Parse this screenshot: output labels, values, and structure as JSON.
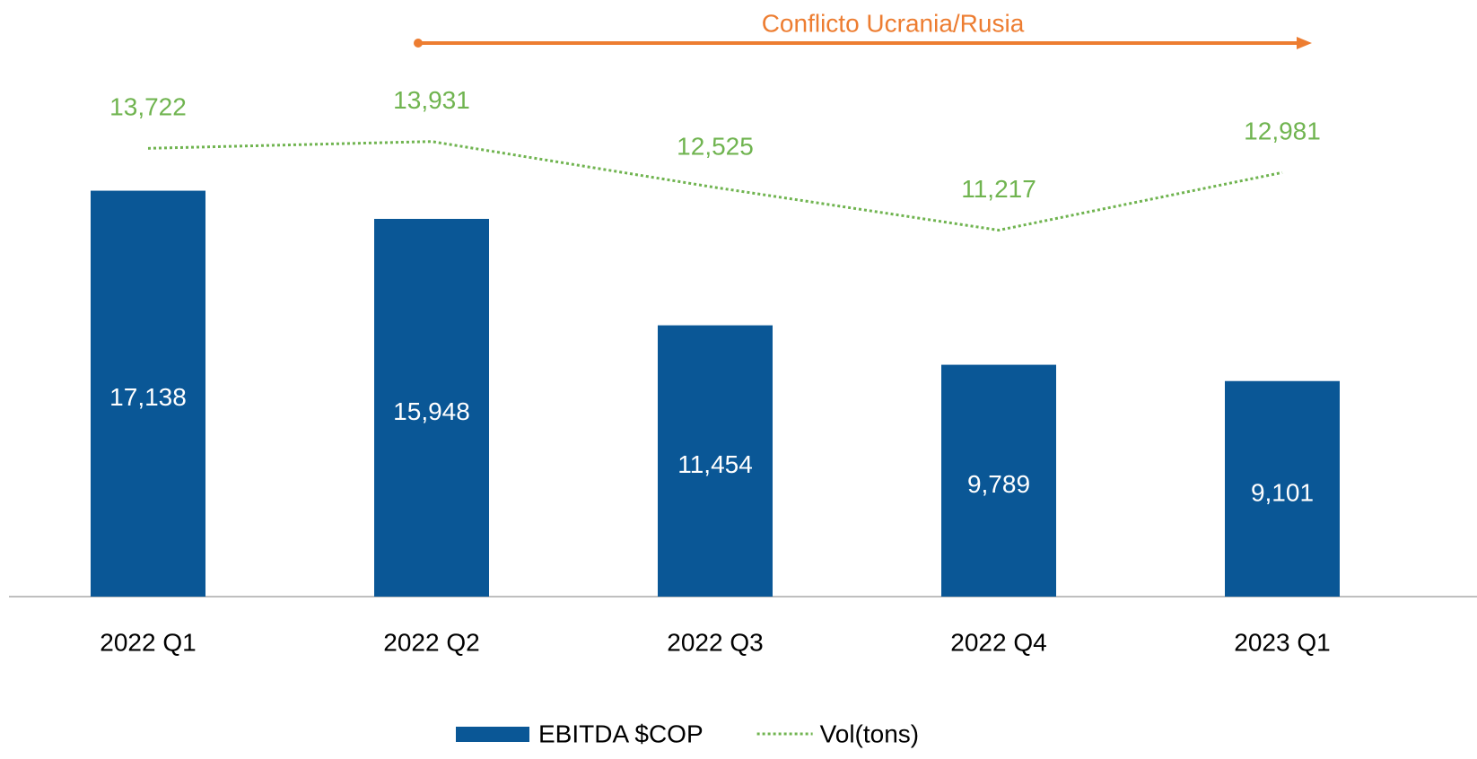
{
  "chart_data": {
    "type": "bar-line",
    "annotation": "Conflicto Ucrania/Rusia",
    "categories": [
      "2022 Q1",
      "2022 Q2",
      "2022 Q3",
      "2022 Q4",
      "2023 Q1"
    ],
    "series": [
      {
        "name": "EBITDA $COP",
        "type": "bar",
        "color": "#0a5796",
        "axis": "y",
        "values": [
          17138,
          15948,
          11454,
          9789,
          9101
        ],
        "value_labels": [
          "17,138",
          "15,948",
          "11,454",
          "9,789",
          "9,101"
        ]
      },
      {
        "name": "Vol(tons)",
        "type": "line",
        "color": "#70b450",
        "axis": "y2",
        "values": [
          13722,
          13931,
          12525,
          11217,
          12981
        ],
        "value_labels": [
          "13,722",
          "13,931",
          "12,525",
          "11,217",
          "12,981"
        ]
      }
    ],
    "ylim": [
      0,
      20000
    ],
    "y2lim": [
      0,
      14500
    ],
    "annotation_color": "#ed7d31",
    "legend": "bottom"
  }
}
